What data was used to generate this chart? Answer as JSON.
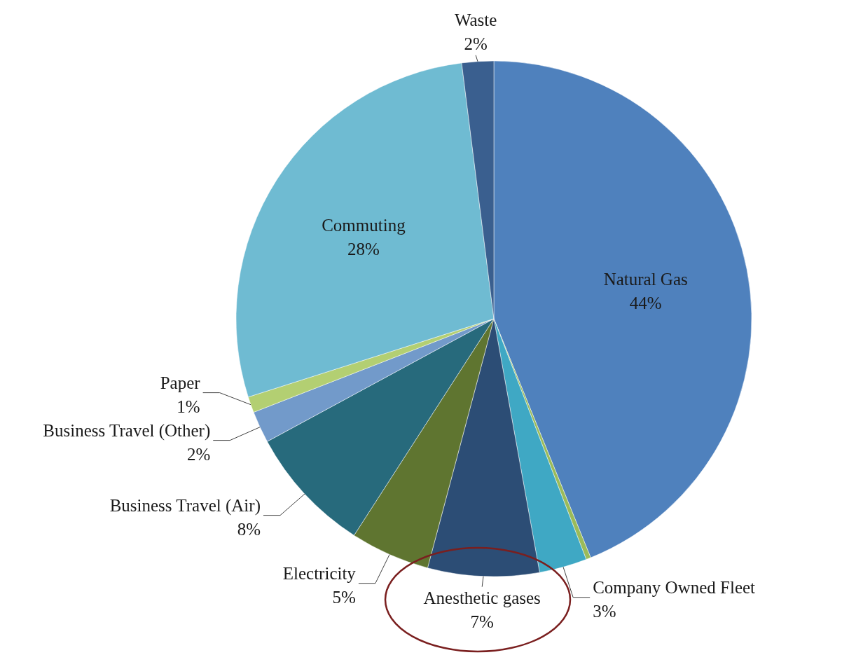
{
  "chart_data": {
    "type": "pie",
    "categories": [
      "Natural Gas",
      null,
      "Company Owned Fleet",
      "Anesthetic gases",
      "Electricity",
      "Business Travel (Air)",
      "Business Travel (Other)",
      "Paper",
      "Commuting",
      "Waste"
    ],
    "values": [
      44,
      0.3,
      3,
      7,
      5,
      8,
      2,
      1,
      28,
      2
    ],
    "colors": [
      "#4f81bd",
      "#9bbb59",
      "#3fa8c4",
      "#2c4d75",
      "#5f7530",
      "#276a7c",
      "#729aca",
      "#b3cf72",
      "#6fbbd2",
      "#3a5f8f"
    ],
    "value_labels": [
      "44%",
      null,
      "3%",
      "7%",
      "5%",
      "8%",
      "2%",
      "1%",
      "28%",
      "2%"
    ]
  }
}
